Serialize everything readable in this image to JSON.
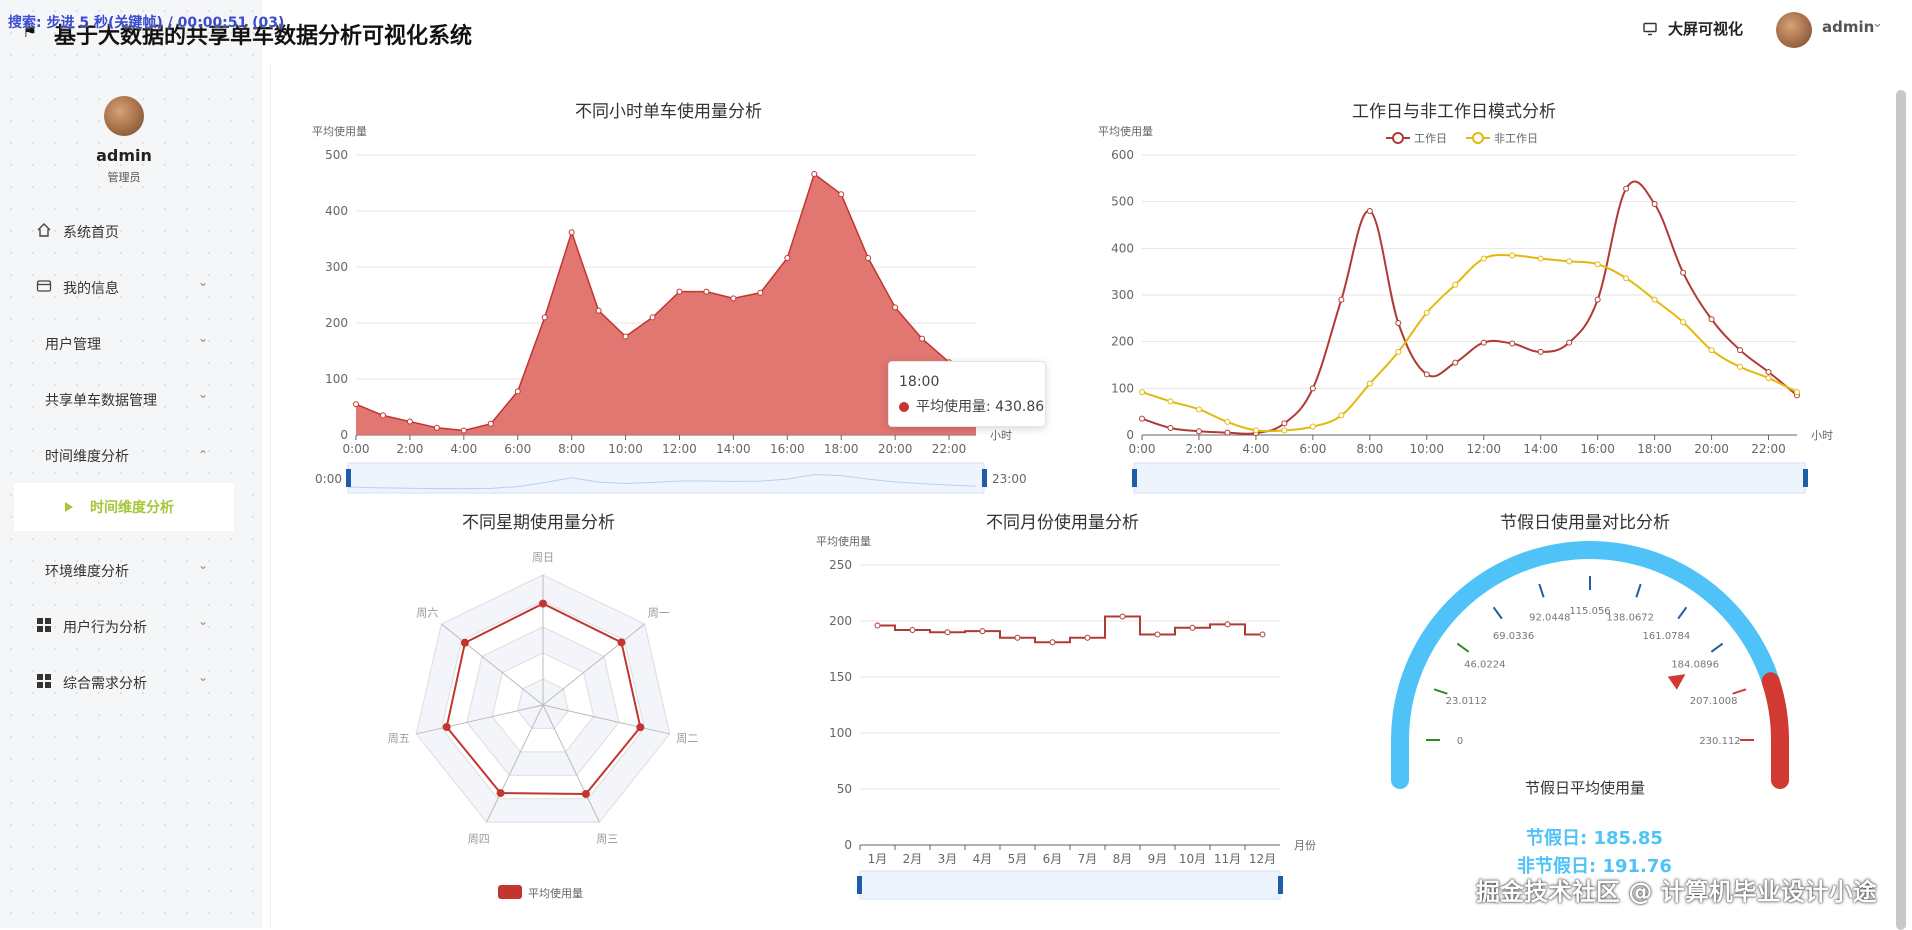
{
  "overlay_text": "搜索: 步进 5 秒(关键帧) / 00:00:51 (03)",
  "app_title": "基于大数据的共享单车数据分析可视化系统",
  "topbar": {
    "bigscreen_label": "大屏可视化",
    "user_label": "admin"
  },
  "sidebar": {
    "user_name": "admin",
    "user_role": "管理员",
    "items": [
      {
        "label": "系统首页",
        "icon": "home-icon"
      },
      {
        "label": "我的信息",
        "icon": "card-icon"
      },
      {
        "label": "用户管理",
        "icon": ""
      },
      {
        "label": "共享单车数据管理",
        "icon": ""
      },
      {
        "label": "时间维度分析",
        "icon": ""
      },
      {
        "label": "时间维度分析",
        "icon": "play-icon"
      },
      {
        "label": "环境维度分析",
        "icon": ""
      },
      {
        "label": "用户行为分析",
        "icon": "grid-icon"
      },
      {
        "label": "综合需求分析",
        "icon": "grid-icon"
      }
    ]
  },
  "colors": {
    "accent": "#a4c639",
    "red": "#d4504a",
    "red_dark": "#b13a36",
    "yellow": "#e5b80b",
    "blue": "#4fc3f7"
  },
  "chart_data": [
    {
      "type": "area",
      "title": "不同小时单车使用量分析",
      "ylabel": "平均使用量",
      "xlabel": "小时",
      "ylim": [
        0,
        500
      ],
      "yticks": [
        0,
        100,
        200,
        300,
        400,
        500
      ],
      "x": [
        "0:00",
        "1:00",
        "2:00",
        "3:00",
        "4:00",
        "5:00",
        "6:00",
        "7:00",
        "8:00",
        "9:00",
        "10:00",
        "11:00",
        "12:00",
        "13:00",
        "14:00",
        "15:00",
        "16:00",
        "17:00",
        "18:00",
        "19:00",
        "20:00",
        "21:00",
        "22:00",
        "23:00"
      ],
      "xtick_labels": [
        "0:00",
        "2:00",
        "4:00",
        "6:00",
        "8:00",
        "10:00",
        "12:00",
        "14:00",
        "16:00",
        "18:00",
        "20:00",
        "22:00"
      ],
      "series": [
        {
          "name": "平均使用量",
          "values": [
            55,
            35,
            24,
            13,
            8,
            20,
            78,
            210,
            362,
            222,
            176,
            210,
            256,
            256,
            244,
            254,
            316,
            466,
            430,
            316,
            228,
            172,
            130,
            90
          ]
        }
      ],
      "zoom_start": "0:00",
      "zoom_end": "23:00",
      "tooltip": {
        "time": "18:00",
        "label": "平均使用量: 430.86"
      }
    },
    {
      "type": "line",
      "title": "工作日与非工作日模式分析",
      "ylabel": "平均使用量",
      "xlabel": "小时",
      "ylim": [
        0,
        600
      ],
      "yticks": [
        0,
        100,
        200,
        300,
        400,
        500,
        600
      ],
      "xtick_labels": [
        "0:00",
        "2:00",
        "4:00",
        "6:00",
        "8:00",
        "10:00",
        "12:00",
        "14:00",
        "16:00",
        "18:00",
        "20:00",
        "22:00"
      ],
      "series": [
        {
          "name": "工作日",
          "values": [
            35,
            15,
            8,
            5,
            4,
            25,
            100,
            290,
            480,
            240,
            130,
            155,
            198,
            196,
            178,
            198,
            290,
            528,
            495,
            348,
            248,
            182,
            135,
            85
          ]
        },
        {
          "name": "非工作日",
          "values": [
            92,
            72,
            55,
            28,
            10,
            10,
            18,
            42,
            110,
            178,
            262,
            322,
            378,
            385,
            378,
            372,
            366,
            336,
            290,
            242,
            182,
            146,
            122,
            92
          ]
        }
      ]
    },
    {
      "type": "radar",
      "title": "不同星期使用量分析",
      "indicators": [
        "周日",
        "周六",
        "周五",
        "周四",
        "周三",
        "周二",
        "周一"
      ],
      "series": [
        {
          "name": "平均使用量",
          "values": [
            195,
            192,
            190,
            188,
            190,
            192,
            193
          ]
        }
      ],
      "max": 250
    },
    {
      "type": "line",
      "title": "不同月份使用量分析",
      "ylabel": "平均使用量",
      "xlabel": "月份",
      "ylim": [
        0,
        250
      ],
      "yticks": [
        0,
        50,
        100,
        150,
        200,
        250
      ],
      "categories": [
        "1月",
        "2月",
        "3月",
        "4月",
        "5月",
        "6月",
        "7月",
        "8月",
        "9月",
        "10月",
        "11月",
        "12月"
      ],
      "series": [
        {
          "name": "平均使用量",
          "values": [
            196,
            192,
            190,
            191,
            185,
            181,
            185,
            204,
            188,
            194,
            197,
            188
          ]
        }
      ]
    },
    {
      "type": "gauge",
      "title": "节假日使用量对比分析",
      "gauge_label": "节假日平均使用量",
      "min": 0,
      "max": 230.112,
      "tick_labels": [
        "0",
        "23.0112",
        "46.0224",
        "69.0336",
        "92.0448",
        "115.056",
        "138.0672",
        "161.0784",
        "184.0896",
        "207.1008",
        "230.112"
      ],
      "value": 185.85,
      "holiday_text": "节假日: 185.85",
      "nonholiday_text": "非节假日: 191.76"
    }
  ],
  "watermark": "掘金技术社区 @ 计算机毕业设计小途"
}
